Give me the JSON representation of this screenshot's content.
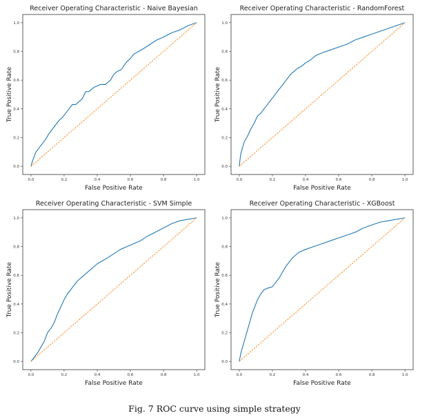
{
  "caption": "Fig. 7 ROC curve using simple strategy",
  "chart_data": [
    {
      "type": "line",
      "title": "Receiver Operating Characteristic - Naive Bayesian",
      "xlabel": "False Positive Rate",
      "ylabel": "True Positive Rate",
      "xlim": [
        0,
        1
      ],
      "ylim": [
        0,
        1
      ],
      "xticks": [
        "0.0",
        "0.2",
        "0.4",
        "0.6",
        "0.8",
        "1.0"
      ],
      "yticks": [
        "0.0",
        "0.2",
        "0.4",
        "0.6",
        "0.8",
        "1.0"
      ],
      "grid": false,
      "series": [
        {
          "style": "solid",
          "color": "#1f77b4",
          "x": [
            0,
            0.01,
            0.02,
            0.03,
            0.05,
            0.07,
            0.09,
            0.11,
            0.13,
            0.15,
            0.17,
            0.19,
            0.21,
            0.23,
            0.25,
            0.27,
            0.29,
            0.31,
            0.33,
            0.35,
            0.38,
            0.4,
            0.42,
            0.45,
            0.48,
            0.5,
            0.52,
            0.54,
            0.55,
            0.56,
            0.58,
            0.6,
            0.62,
            0.65,
            0.68,
            0.72,
            0.76,
            0.8,
            0.85,
            0.9,
            0.95,
            1.0
          ],
          "y": [
            0,
            0.04,
            0.07,
            0.1,
            0.13,
            0.16,
            0.19,
            0.23,
            0.26,
            0.29,
            0.32,
            0.34,
            0.37,
            0.4,
            0.43,
            0.43,
            0.45,
            0.47,
            0.52,
            0.52,
            0.55,
            0.56,
            0.57,
            0.57,
            0.6,
            0.64,
            0.66,
            0.67,
            0.68,
            0.7,
            0.73,
            0.75,
            0.78,
            0.8,
            0.82,
            0.85,
            0.88,
            0.9,
            0.93,
            0.95,
            0.98,
            1.0
          ]
        },
        {
          "style": "dashed",
          "color": "#ff7f0e",
          "x": [
            0,
            1
          ],
          "y": [
            0,
            1
          ]
        }
      ]
    },
    {
      "type": "line",
      "title": "Receiver Operating Characteristic - RandomForest",
      "xlabel": "False Positive Rate",
      "ylabel": "True Positive Rate",
      "xlim": [
        0,
        1
      ],
      "ylim": [
        0,
        1
      ],
      "xticks": [
        "0.0",
        "0.2",
        "0.4",
        "0.6",
        "0.8",
        "1.0"
      ],
      "yticks": [
        "0.0",
        "0.2",
        "0.4",
        "0.6",
        "0.8",
        "1.0"
      ],
      "grid": false,
      "series": [
        {
          "style": "solid",
          "color": "#1f77b4",
          "x": [
            0,
            0.005,
            0.01,
            0.02,
            0.03,
            0.05,
            0.07,
            0.09,
            0.11,
            0.13,
            0.15,
            0.17,
            0.19,
            0.21,
            0.23,
            0.25,
            0.27,
            0.29,
            0.31,
            0.33,
            0.35,
            0.38,
            0.4,
            0.43,
            0.46,
            0.5,
            0.55,
            0.6,
            0.65,
            0.7,
            0.75,
            0.8,
            0.85,
            0.9,
            0.95,
            1.0
          ],
          "y": [
            0,
            0.05,
            0.09,
            0.13,
            0.17,
            0.21,
            0.26,
            0.3,
            0.35,
            0.37,
            0.4,
            0.43,
            0.46,
            0.49,
            0.52,
            0.55,
            0.58,
            0.61,
            0.64,
            0.66,
            0.68,
            0.7,
            0.72,
            0.74,
            0.77,
            0.79,
            0.81,
            0.83,
            0.85,
            0.88,
            0.9,
            0.92,
            0.94,
            0.96,
            0.98,
            1.0
          ]
        },
        {
          "style": "dashed",
          "color": "#ff7f0e",
          "x": [
            0,
            1
          ],
          "y": [
            0,
            1
          ]
        }
      ]
    },
    {
      "type": "line",
      "title": "Receiver Operating Characteristic - SVM Simple",
      "xlabel": "False Positive Rate",
      "ylabel": "True Positive Rate",
      "xlim": [
        0,
        1
      ],
      "ylim": [
        0,
        1
      ],
      "xticks": [
        "0.0",
        "0.2",
        "0.4",
        "0.6",
        "0.8",
        "1.0"
      ],
      "yticks": [
        "0.0",
        "0.2",
        "0.4",
        "0.6",
        "0.8",
        "1.0"
      ],
      "grid": false,
      "series": [
        {
          "style": "solid",
          "color": "#1f77b4",
          "x": [
            0,
            0.02,
            0.04,
            0.06,
            0.08,
            0.1,
            0.12,
            0.14,
            0.16,
            0.18,
            0.2,
            0.22,
            0.24,
            0.26,
            0.28,
            0.3,
            0.33,
            0.36,
            0.4,
            0.43,
            0.46,
            0.5,
            0.54,
            0.58,
            0.62,
            0.66,
            0.7,
            0.75,
            0.8,
            0.85,
            0.9,
            0.95,
            1.0
          ],
          "y": [
            0,
            0.03,
            0.06,
            0.1,
            0.14,
            0.2,
            0.23,
            0.27,
            0.33,
            0.38,
            0.43,
            0.47,
            0.5,
            0.53,
            0.56,
            0.58,
            0.61,
            0.64,
            0.68,
            0.7,
            0.72,
            0.75,
            0.78,
            0.8,
            0.82,
            0.84,
            0.87,
            0.9,
            0.93,
            0.96,
            0.98,
            0.99,
            1.0
          ]
        },
        {
          "style": "dashed",
          "color": "#ff7f0e",
          "x": [
            0,
            1
          ],
          "y": [
            0,
            1
          ]
        }
      ]
    },
    {
      "type": "line",
      "title": "Receiver Operating Characteristic - XGBoost",
      "xlabel": "False Positive Rate",
      "ylabel": "True Positive Rate",
      "xlim": [
        0,
        1
      ],
      "ylim": [
        0,
        1
      ],
      "xticks": [
        "0.0",
        "0.2",
        "0.4",
        "0.6",
        "0.8",
        "1.0"
      ],
      "yticks": [
        "0.0",
        "0.2",
        "0.4",
        "0.6",
        "0.8",
        "1.0"
      ],
      "grid": false,
      "series": [
        {
          "style": "solid",
          "color": "#1f77b4",
          "x": [
            0,
            0.01,
            0.02,
            0.03,
            0.04,
            0.05,
            0.06,
            0.07,
            0.08,
            0.09,
            0.1,
            0.11,
            0.12,
            0.13,
            0.15,
            0.17,
            0.2,
            0.22,
            0.24,
            0.26,
            0.28,
            0.3,
            0.32,
            0.34,
            0.36,
            0.4,
            0.45,
            0.5,
            0.55,
            0.6,
            0.65,
            0.7,
            0.75,
            0.8,
            0.85,
            0.9,
            0.95,
            1.0
          ],
          "y": [
            0,
            0.06,
            0.1,
            0.14,
            0.18,
            0.22,
            0.26,
            0.3,
            0.34,
            0.37,
            0.4,
            0.43,
            0.45,
            0.47,
            0.5,
            0.51,
            0.52,
            0.55,
            0.58,
            0.62,
            0.66,
            0.69,
            0.72,
            0.74,
            0.76,
            0.78,
            0.8,
            0.82,
            0.84,
            0.86,
            0.88,
            0.9,
            0.93,
            0.95,
            0.97,
            0.98,
            0.99,
            1.0
          ]
        },
        {
          "style": "dashed",
          "color": "#ff7f0e",
          "x": [
            0,
            1
          ],
          "y": [
            0,
            1
          ]
        }
      ]
    }
  ]
}
